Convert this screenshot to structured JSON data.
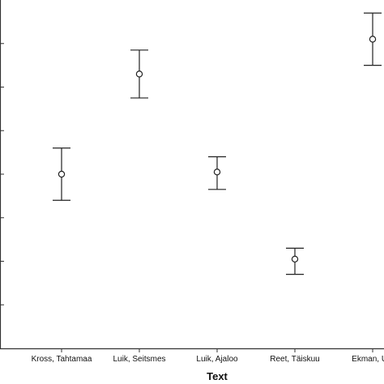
{
  "chart_data": {
    "type": "scatter",
    "subtype": "error-bar",
    "title": "",
    "xlabel": "Text",
    "ylabel": "",
    "categories": [
      "Kross, Tahtamaa",
      "Luik, Seitsmes",
      "Luik, Ajaloo",
      "Reet, Täiskuu",
      "Ekman, Uni"
    ],
    "series": [
      {
        "values": [
          4.0,
          6.3,
          4.05,
          2.05,
          7.1
        ],
        "lower": [
          3.4,
          5.75,
          3.65,
          1.7,
          6.5
        ],
        "upper": [
          4.6,
          6.85,
          4.4,
          2.3,
          7.7
        ]
      }
    ],
    "ylim": [
      0,
      8
    ],
    "yticks": [
      1,
      2,
      3,
      4,
      5,
      6,
      7
    ],
    "grid": false,
    "legend": "none",
    "colors": {
      "marker": "#222222",
      "axis": "#333333"
    }
  }
}
